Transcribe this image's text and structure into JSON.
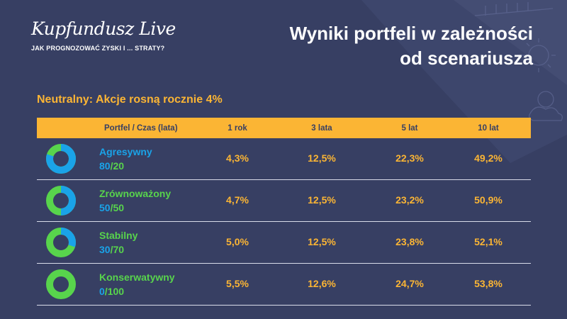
{
  "colors": {
    "background": "#373f63",
    "accent": "#fbb534",
    "equity_blue": "#1aa3e8",
    "bond_green": "#58d44c",
    "divider": "#d9dcea"
  },
  "header": {
    "logo_name": "Kupfundusz Live",
    "logo_tagline": "JAK PROGNOZOWAĆ ZYSKI I ... STRATY?",
    "title_line1": "Wyniki portfeli w zależności",
    "title_line2": "od scenariusza"
  },
  "scenario": {
    "title": "Neutralny: Akcje rosną rocznie 4%"
  },
  "table": {
    "columns": [
      "Portfel / Czas (lata)",
      "1 rok",
      "3 lata",
      "5 lat",
      "10 lat"
    ],
    "rows": [
      {
        "name": "Agresywny",
        "split_equity": "80",
        "split_bonds": "20",
        "equity_fraction": 0.8,
        "name_color": "#1aa3e8",
        "values": [
          "4,3%",
          "12,5%",
          "22,3%",
          "49,2%"
        ]
      },
      {
        "name": "Zrównoważony",
        "split_equity": "50",
        "split_bonds": "50",
        "equity_fraction": 0.5,
        "name_color": "#58d44c",
        "values": [
          "4,7%",
          "12,5%",
          "23,2%",
          "50,9%"
        ]
      },
      {
        "name": "Stabilny",
        "split_equity": "30",
        "split_bonds": "70",
        "equity_fraction": 0.3,
        "name_color": "#58d44c",
        "values": [
          "5,0%",
          "12,5%",
          "23,8%",
          "52,1%"
        ]
      },
      {
        "name": "Konserwatywny",
        "split_equity": "0",
        "split_bonds": "100",
        "equity_fraction": 0.0,
        "name_color": "#58d44c",
        "values": [
          "5,5%",
          "12,6%",
          "24,7%",
          "53,8%"
        ]
      }
    ]
  }
}
